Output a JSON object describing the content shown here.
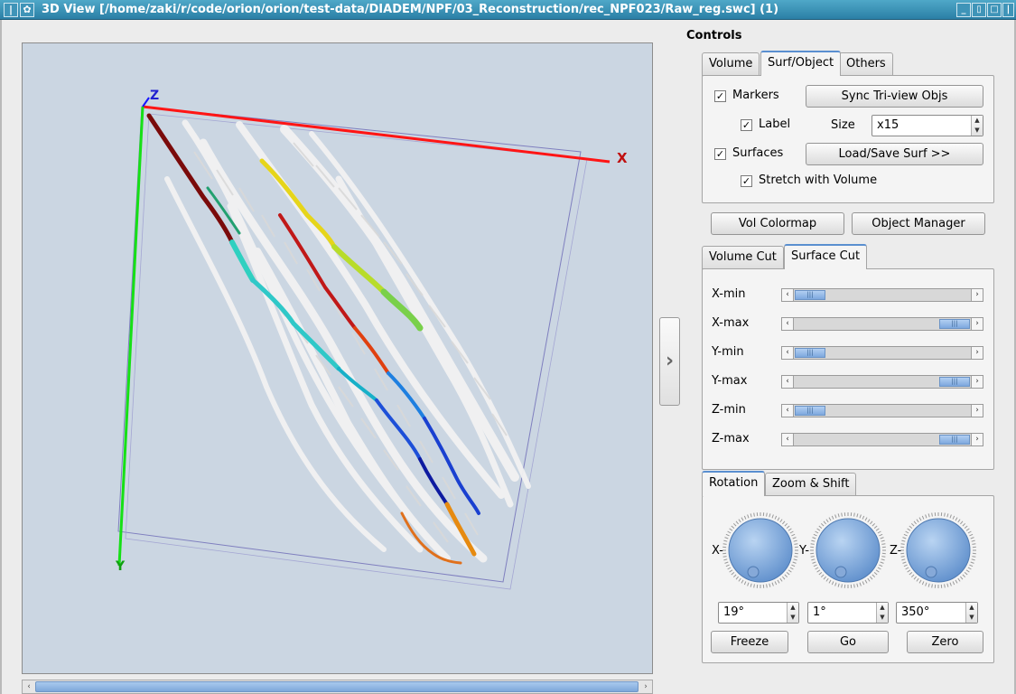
{
  "window": {
    "title": "3D View [/home/zaki/r/code/orion/orion/test-data/DIADEM/NPF/03_Reconstruction/rec_NPF023/Raw_reg.swc] (1)"
  },
  "viewport": {
    "axis_x": "X",
    "axis_y": "Y",
    "axis_z": "Z"
  },
  "controls": {
    "title": "Controls",
    "top_tabs": [
      "Volume",
      "Surf/Object",
      "Others"
    ],
    "active_top_tab": "Surf/Object",
    "surf_object": {
      "markers": {
        "label": "Markers",
        "checked": true
      },
      "sync_button": "Sync Tri-view Objs",
      "label_cb": {
        "label": "Label",
        "checked": true
      },
      "size_label": "Size",
      "size_value": "x15",
      "surfaces": {
        "label": "Surfaces",
        "checked": true
      },
      "load_save_button": "Load/Save Surf >>",
      "stretch": {
        "label": "Stretch with Volume",
        "checked": true
      }
    },
    "vol_colormap_button": "Vol Colormap",
    "object_manager_button": "Object Manager",
    "cut_tabs": [
      "Volume Cut",
      "Surface Cut"
    ],
    "active_cut_tab": "Surface Cut",
    "cuts": [
      {
        "label": "X-min",
        "level": 0
      },
      {
        "label": "X-max",
        "level": 1
      },
      {
        "label": "Y-min",
        "level": 0
      },
      {
        "label": "Y-max",
        "level": 1
      },
      {
        "label": "Z-min",
        "level": 0
      },
      {
        "label": "Z-max",
        "level": 1
      }
    ],
    "view_tabs": [
      "Rotation",
      "Zoom & Shift"
    ],
    "active_view_tab": "Rotation",
    "rotation": {
      "dials": [
        {
          "axis_label": "X-",
          "value": "19°"
        },
        {
          "axis_label": "Y-",
          "value": "1°"
        },
        {
          "axis_label": "Z-",
          "value": "350°"
        }
      ],
      "freeze_button": "Freeze",
      "go_button": "Go",
      "zero_button": "Zero"
    }
  }
}
